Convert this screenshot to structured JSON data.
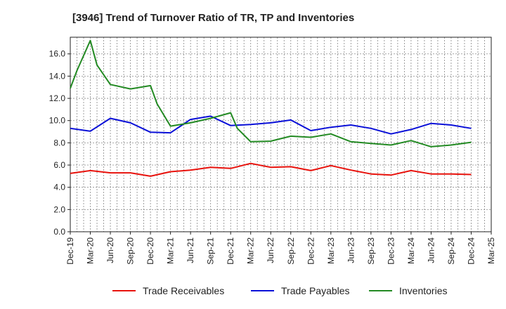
{
  "chart_data": {
    "type": "line",
    "title": "[3946]  Trend of Turnover Ratio of TR, TP and Inventories",
    "xlabel": "",
    "ylabel": "",
    "ylim": [
      0,
      17.5
    ],
    "yticks": [
      "0.0",
      "2.0",
      "4.0",
      "6.0",
      "8.0",
      "10.0",
      "12.0",
      "14.0",
      "16.0"
    ],
    "ytick_values": [
      0,
      2,
      4,
      6,
      8,
      10,
      12,
      14,
      16
    ],
    "x": [
      "Dec-19",
      "Jan-20",
      "Mar-20",
      "Apr-20",
      "Jun-20",
      "Sep-20",
      "Dec-20",
      "Jan-21",
      "Mar-21",
      "Jun-21",
      "Sep-21",
      "Dec-21",
      "Jan-22",
      "Mar-22",
      "Jun-22",
      "Sep-22",
      "Dec-22",
      "Mar-23",
      "Jun-23",
      "Sep-23",
      "Dec-23",
      "Mar-24",
      "Jun-24",
      "Sep-24",
      "Dec-24"
    ],
    "x_month_index": [
      0,
      1,
      3,
      4,
      6,
      9,
      12,
      13,
      15,
      18,
      21,
      24,
      25,
      27,
      30,
      33,
      36,
      39,
      42,
      45,
      48,
      51,
      54,
      57,
      60
    ],
    "xticks": [
      "Dec-19",
      "Mar-20",
      "Jun-20",
      "Sep-20",
      "Dec-20",
      "Mar-21",
      "Jun-21",
      "Sep-21",
      "Dec-21",
      "Mar-22",
      "Jun-22",
      "Sep-22",
      "Dec-22",
      "Mar-23",
      "Jun-23",
      "Sep-23",
      "Dec-23",
      "Mar-24",
      "Jun-24",
      "Sep-24",
      "Dec-24",
      "Mar-25"
    ],
    "xtick_month_index": [
      0,
      3,
      6,
      9,
      12,
      15,
      18,
      21,
      24,
      27,
      30,
      33,
      36,
      39,
      42,
      45,
      48,
      51,
      54,
      57,
      60,
      63
    ],
    "xlim_months": [
      0,
      63
    ],
    "grid": true,
    "legend_position": "bottom",
    "series": [
      {
        "name": "Trade Receivables",
        "color": "#e8120c",
        "values": [
          5.25,
          null,
          5.5,
          null,
          5.3,
          5.3,
          5.0,
          null,
          5.4,
          5.55,
          5.8,
          5.7,
          null,
          6.15,
          5.8,
          5.85,
          5.5,
          5.95,
          5.55,
          5.2,
          5.1,
          5.5,
          5.2,
          5.2,
          5.15
        ]
      },
      {
        "name": "Trade Payables",
        "color": "#0a10d8",
        "values": [
          9.3,
          null,
          9.05,
          null,
          10.2,
          9.8,
          8.95,
          null,
          8.9,
          10.1,
          10.4,
          9.55,
          null,
          9.65,
          9.8,
          10.05,
          9.1,
          9.4,
          9.6,
          9.3,
          8.8,
          9.2,
          9.75,
          9.6,
          9.3
        ]
      },
      {
        "name": "Inventories",
        "color": "#238a23",
        "values": [
          12.9,
          14.5,
          17.2,
          15.0,
          13.25,
          12.85,
          13.15,
          11.5,
          9.5,
          9.8,
          10.2,
          10.7,
          9.3,
          8.1,
          8.15,
          8.6,
          8.5,
          8.8,
          8.1,
          7.95,
          7.8,
          8.2,
          7.65,
          7.8,
          8.05
        ]
      }
    ]
  }
}
